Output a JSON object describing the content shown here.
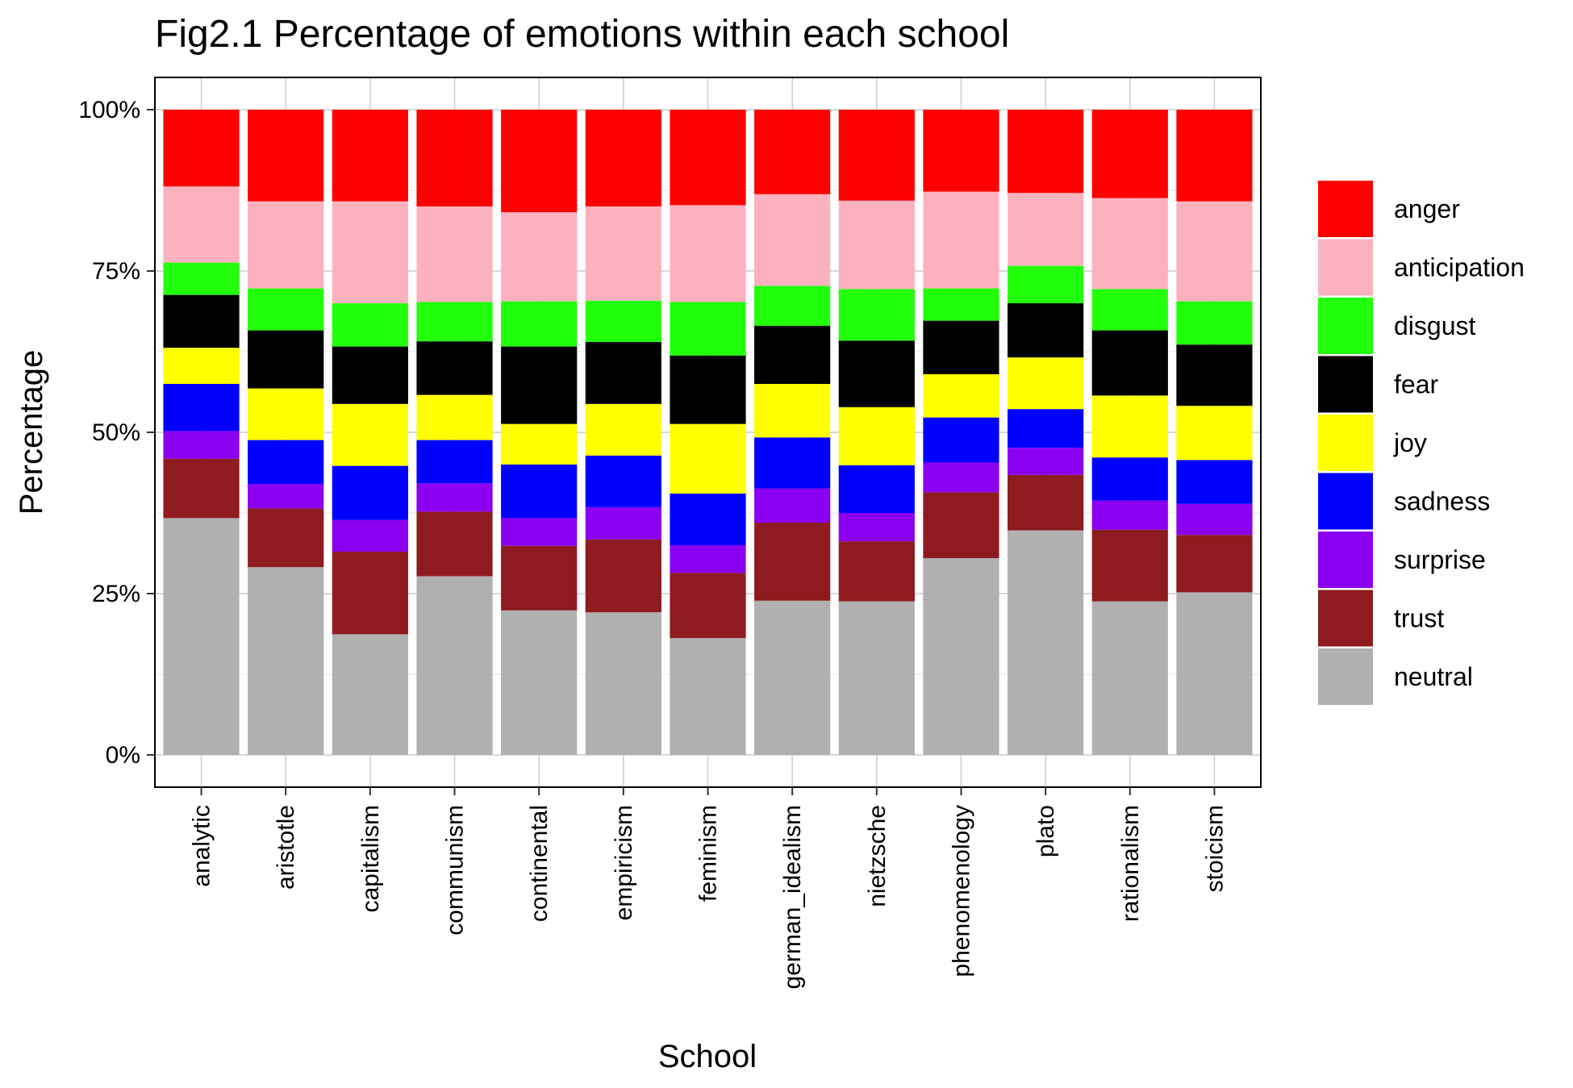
{
  "chart_data": {
    "type": "bar",
    "stacked": true,
    "title": "Fig2.1 Percentage of emotions within each school",
    "xlabel": "School",
    "ylabel": "Percentage",
    "ylim": [
      0,
      100
    ],
    "y_ticks": [
      "0%",
      "25%",
      "50%",
      "75%",
      "100%"
    ],
    "y_tick_values": [
      0,
      25,
      50,
      75,
      100
    ],
    "grid": true,
    "legend_position": "right",
    "categories": [
      "analytic",
      "aristotle",
      "capitalism",
      "communism",
      "continental",
      "empiricism",
      "feminism",
      "german_idealism",
      "nietzsche",
      "phenomenology",
      "plato",
      "rationalism",
      "stoicism"
    ],
    "series": [
      {
        "name": "neutral",
        "color": "#B0B0B0",
        "values": [
          36.7,
          29.1,
          18.7,
          27.7,
          22.4,
          22.1,
          18.1,
          23.9,
          23.8,
          30.5,
          34.8,
          23.8,
          25.2
        ]
      },
      {
        "name": "trust",
        "color": "#8E1B1F",
        "values": [
          9.2,
          9.1,
          12.8,
          10.0,
          10.0,
          11.3,
          10.1,
          12.1,
          9.3,
          10.2,
          8.6,
          11.1,
          8.9
        ]
      },
      {
        "name": "surprise",
        "color": "#8B00F0",
        "values": [
          4.3,
          3.8,
          4.9,
          4.4,
          4.3,
          5.0,
          4.3,
          5.3,
          4.4,
          4.6,
          4.2,
          4.5,
          4.8
        ]
      },
      {
        "name": "sadness",
        "color": "#0000FF",
        "values": [
          7.3,
          6.8,
          8.4,
          6.7,
          8.3,
          8.0,
          8.0,
          7.9,
          7.4,
          7.0,
          6.0,
          6.7,
          6.8
        ]
      },
      {
        "name": "joy",
        "color": "#FFFF00",
        "values": [
          5.6,
          8.0,
          9.6,
          7.0,
          6.3,
          8.0,
          10.8,
          8.3,
          9.0,
          6.7,
          8.0,
          9.6,
          8.4
        ]
      },
      {
        "name": "fear",
        "color": "#000000",
        "values": [
          8.2,
          9.0,
          8.9,
          8.3,
          12.0,
          9.6,
          10.6,
          9.0,
          10.3,
          8.3,
          8.4,
          10.1,
          9.5
        ]
      },
      {
        "name": "disgust",
        "color": "#22FF0A",
        "values": [
          5.0,
          6.5,
          6.7,
          6.1,
          7.0,
          6.4,
          8.3,
          6.2,
          8.0,
          5.0,
          5.8,
          6.4,
          6.7
        ]
      },
      {
        "name": "anticipation",
        "color": "#FCB2BE",
        "values": [
          11.8,
          13.5,
          15.8,
          14.8,
          13.8,
          14.6,
          15.0,
          14.2,
          13.7,
          15.0,
          11.3,
          14.1,
          15.5
        ]
      },
      {
        "name": "anger",
        "color": "#FF0000",
        "values": [
          11.9,
          14.2,
          14.2,
          15.0,
          15.9,
          15.0,
          14.8,
          13.1,
          14.1,
          12.7,
          12.9,
          13.7,
          14.2
        ]
      }
    ],
    "legend_order": [
      "anger",
      "anticipation",
      "disgust",
      "fear",
      "joy",
      "sadness",
      "surprise",
      "trust",
      "neutral"
    ]
  }
}
